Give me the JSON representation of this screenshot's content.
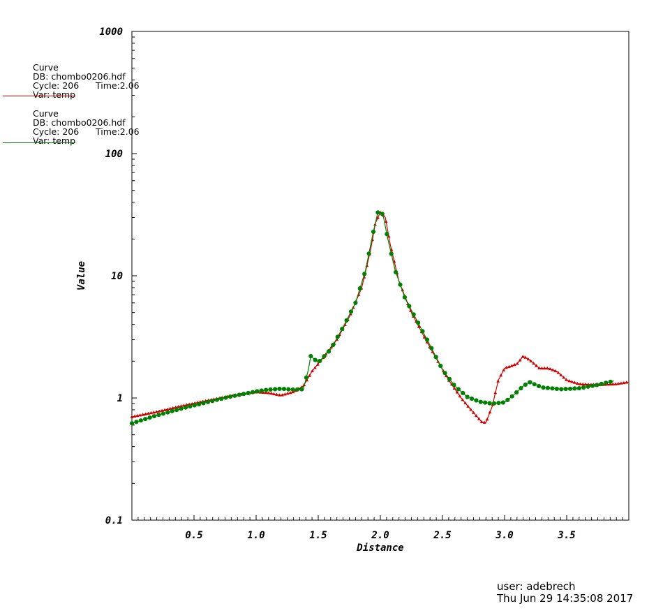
{
  "legend": [
    {
      "title": "Curve",
      "db": "DB: chombo0206.hdf",
      "cycle": "Cycle: 206",
      "time": "Time:2.06",
      "var": "Var: temp",
      "color": "#d00000"
    },
    {
      "title": "Curve",
      "db": "DB: chombo0206.hdf",
      "cycle": "Cycle: 206",
      "time": "Time:2.06",
      "var": "Var: temp",
      "color": "#008000"
    }
  ],
  "user": {
    "name": "user: adebrech",
    "date": "Thu Jun 29 14:35:08 2017"
  },
  "chart_data": {
    "type": "line",
    "title": "",
    "xlabel": "Distance",
    "ylabel": "Value",
    "y_scale": "log",
    "xlim": [
      0.0,
      4.0
    ],
    "ylim": [
      0.1,
      1000
    ],
    "x_ticks": [
      "0.5",
      "1.0",
      "1.5",
      "2.0",
      "2.5",
      "3.0",
      "3.5"
    ],
    "y_ticks": [
      "0.1",
      "1",
      "10",
      "100",
      "1000"
    ],
    "grid": false,
    "series": [
      {
        "color": "#d00000",
        "marker": "triangle",
        "points": [
          [
            0.0,
            0.7
          ],
          [
            0.2,
            0.77
          ],
          [
            0.4,
            0.86
          ],
          [
            0.6,
            0.95
          ],
          [
            0.8,
            1.04
          ],
          [
            1.0,
            1.12
          ],
          [
            1.1,
            1.1
          ],
          [
            1.2,
            1.05
          ],
          [
            1.3,
            1.12
          ],
          [
            1.38,
            1.25
          ],
          [
            1.45,
            1.65
          ],
          [
            1.55,
            2.2
          ],
          [
            1.65,
            3.0
          ],
          [
            1.75,
            4.6
          ],
          [
            1.85,
            8.0
          ],
          [
            1.92,
            16.0
          ],
          [
            1.96,
            27.0
          ],
          [
            2.0,
            33.0
          ],
          [
            2.04,
            30.0
          ],
          [
            2.08,
            18.0
          ],
          [
            2.15,
            9.0
          ],
          [
            2.25,
            5.0
          ],
          [
            2.35,
            3.2
          ],
          [
            2.45,
            2.1
          ],
          [
            2.55,
            1.4
          ],
          [
            2.65,
            1.0
          ],
          [
            2.72,
            0.82
          ],
          [
            2.78,
            0.7
          ],
          [
            2.82,
            0.63
          ],
          [
            2.85,
            0.63
          ],
          [
            2.9,
            0.85
          ],
          [
            2.95,
            1.4
          ],
          [
            3.0,
            1.75
          ],
          [
            3.05,
            1.82
          ],
          [
            3.1,
            1.9
          ],
          [
            3.15,
            2.2
          ],
          [
            3.2,
            2.05
          ],
          [
            3.28,
            1.75
          ],
          [
            3.35,
            1.75
          ],
          [
            3.42,
            1.65
          ],
          [
            3.5,
            1.4
          ],
          [
            3.6,
            1.3
          ],
          [
            3.75,
            1.28
          ],
          [
            3.9,
            1.3
          ],
          [
            4.0,
            1.35
          ]
        ]
      },
      {
        "color": "#008000",
        "marker": "circle",
        "points": [
          [
            0.0,
            0.62
          ],
          [
            0.2,
            0.72
          ],
          [
            0.4,
            0.82
          ],
          [
            0.6,
            0.92
          ],
          [
            0.8,
            1.03
          ],
          [
            1.0,
            1.13
          ],
          [
            1.1,
            1.17
          ],
          [
            1.2,
            1.19
          ],
          [
            1.3,
            1.17
          ],
          [
            1.38,
            1.18
          ],
          [
            1.42,
            1.7
          ],
          [
            1.44,
            2.2
          ],
          [
            1.5,
            1.95
          ],
          [
            1.6,
            2.5
          ],
          [
            1.7,
            3.8
          ],
          [
            1.8,
            6.0
          ],
          [
            1.88,
            11.0
          ],
          [
            1.94,
            22.0
          ],
          [
            1.98,
            33.0
          ],
          [
            2.02,
            32.0
          ],
          [
            2.06,
            20.0
          ],
          [
            2.12,
            11.0
          ],
          [
            2.2,
            6.5
          ],
          [
            2.3,
            4.2
          ],
          [
            2.4,
            2.7
          ],
          [
            2.5,
            1.7
          ],
          [
            2.6,
            1.25
          ],
          [
            2.7,
            1.02
          ],
          [
            2.8,
            0.93
          ],
          [
            2.9,
            0.9
          ],
          [
            3.0,
            0.92
          ],
          [
            3.07,
            1.05
          ],
          [
            3.15,
            1.25
          ],
          [
            3.2,
            1.35
          ],
          [
            3.3,
            1.22
          ],
          [
            3.45,
            1.18
          ],
          [
            3.6,
            1.2
          ],
          [
            3.75,
            1.28
          ],
          [
            3.88,
            1.38
          ]
        ]
      }
    ]
  }
}
